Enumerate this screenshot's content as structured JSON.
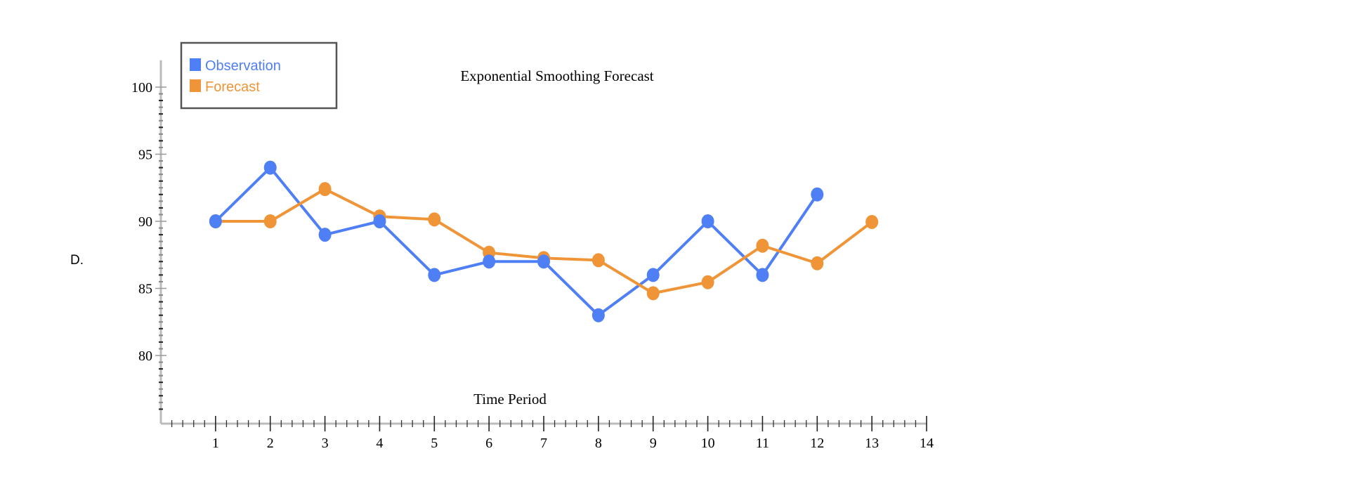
{
  "option_label": "D.",
  "chart_data": {
    "type": "line",
    "title": "Exponential Smoothing Forecast",
    "xlabel": "Time Period",
    "ylabel": "",
    "xlim": [
      0,
      14
    ],
    "ylim": [
      75.8,
      102
    ],
    "x_ticks": [
      1,
      2,
      3,
      4,
      5,
      6,
      7,
      8,
      9,
      10,
      11,
      12,
      13,
      14
    ],
    "y_ticks": [
      80,
      85,
      90,
      95,
      100
    ],
    "legend_position": "top-left",
    "series": [
      {
        "name": "Observation",
        "color": "#4f7ff5",
        "x": [
          1,
          2,
          3,
          4,
          5,
          6,
          7,
          8,
          9,
          10,
          11,
          12
        ],
        "values": [
          90,
          94,
          89,
          90,
          86,
          87,
          87,
          83,
          86,
          90,
          86,
          92
        ]
      },
      {
        "name": "Forecast",
        "color": "#f09537",
        "x": [
          1,
          2,
          3,
          4,
          5,
          6,
          7,
          8,
          9,
          10,
          11,
          12,
          13
        ],
        "values": [
          90,
          90,
          92.4,
          90.36,
          90.14,
          87.66,
          87.26,
          87.1,
          84.64,
          85.46,
          88.18,
          86.87,
          89.95
        ]
      }
    ]
  }
}
